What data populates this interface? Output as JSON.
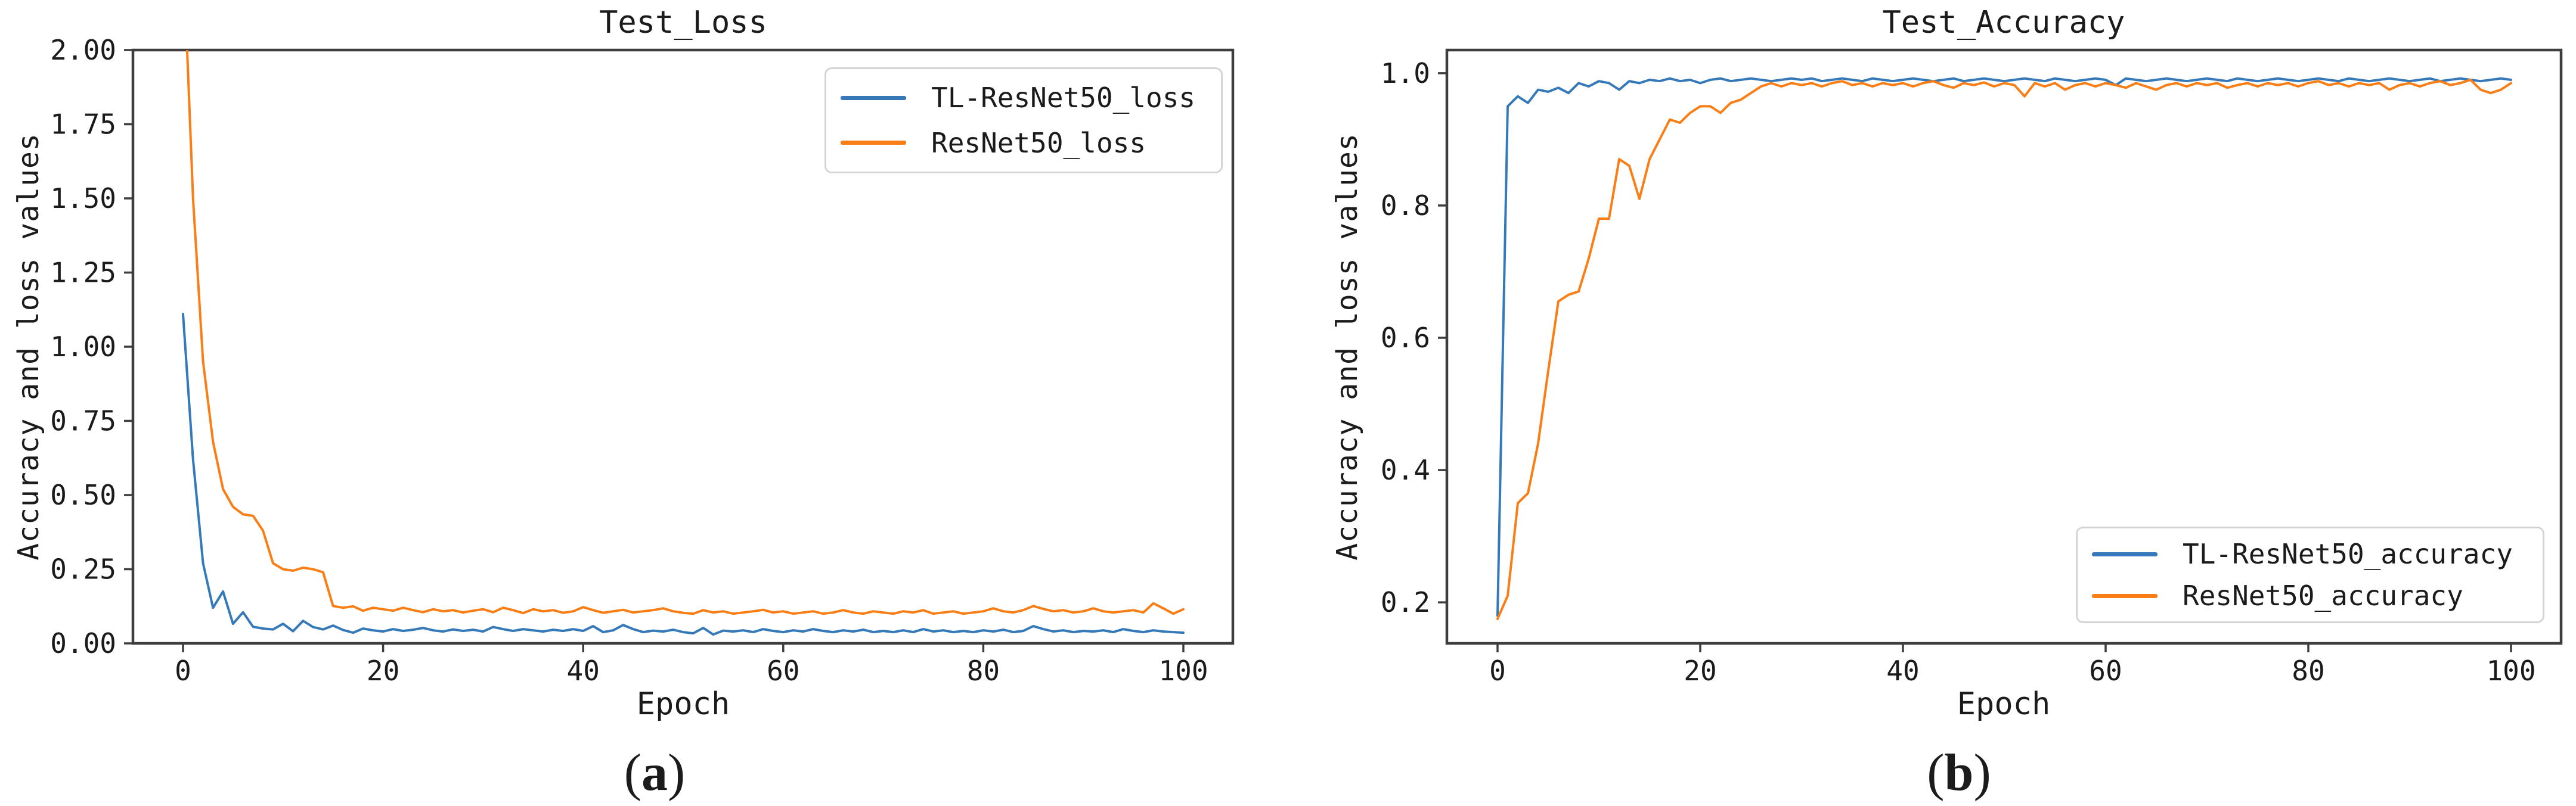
{
  "figure": {
    "background": "#ffffff",
    "spine_color": "#3d3d3d",
    "text_color": "#1b1b1b"
  },
  "chart_data": [
    {
      "type": "line",
      "title": "Test_Loss",
      "xlabel": "Epoch",
      "ylabel": "Accuracy and loss values",
      "caption": {
        "open": "(",
        "letter": "a",
        "close": ")"
      },
      "xlim": [
        -5,
        105
      ],
      "ylim": [
        0,
        2
      ],
      "grid": false,
      "legend_position": "upper-right",
      "xticks": [
        0,
        20,
        40,
        60,
        80,
        100
      ],
      "ytick_values": [
        0,
        0.25,
        0.5,
        0.75,
        1.0,
        1.25,
        1.5,
        1.75,
        2.0
      ],
      "ytick_labels": [
        "0.00",
        "0.25",
        "0.50",
        "0.75",
        "1.00",
        "1.25",
        "1.50",
        "1.75",
        "2.00"
      ],
      "x_start": 0,
      "x_step": 1,
      "series": [
        {
          "name": "TL-ResNet50_loss",
          "color": "#3579b8",
          "values": [
            1.11,
            0.62,
            0.27,
            0.12,
            0.175,
            0.066,
            0.105,
            0.056,
            0.05,
            0.047,
            0.066,
            0.041,
            0.076,
            0.055,
            0.047,
            0.06,
            0.045,
            0.036,
            0.05,
            0.044,
            0.04,
            0.048,
            0.042,
            0.046,
            0.052,
            0.044,
            0.04,
            0.047,
            0.042,
            0.046,
            0.04,
            0.055,
            0.048,
            0.042,
            0.048,
            0.044,
            0.04,
            0.046,
            0.042,
            0.048,
            0.042,
            0.058,
            0.038,
            0.044,
            0.062,
            0.048,
            0.038,
            0.043,
            0.04,
            0.046,
            0.038,
            0.034,
            0.052,
            0.03,
            0.043,
            0.04,
            0.044,
            0.038,
            0.048,
            0.042,
            0.038,
            0.044,
            0.04,
            0.048,
            0.042,
            0.038,
            0.044,
            0.04,
            0.046,
            0.038,
            0.042,
            0.038,
            0.044,
            0.038,
            0.048,
            0.04,
            0.044,
            0.038,
            0.042,
            0.038,
            0.044,
            0.04,
            0.046,
            0.038,
            0.042,
            0.058,
            0.048,
            0.04,
            0.044,
            0.038,
            0.042,
            0.04,
            0.044,
            0.038,
            0.048,
            0.042,
            0.038,
            0.044,
            0.04,
            0.038,
            0.036
          ]
        },
        {
          "name": "ResNet50_loss",
          "color": "#fa7e16",
          "values": [
            2.35,
            1.5,
            0.95,
            0.68,
            0.52,
            0.46,
            0.435,
            0.43,
            0.38,
            0.27,
            0.25,
            0.245,
            0.255,
            0.25,
            0.24,
            0.126,
            0.12,
            0.125,
            0.11,
            0.12,
            0.115,
            0.11,
            0.12,
            0.112,
            0.105,
            0.115,
            0.108,
            0.112,
            0.104,
            0.11,
            0.115,
            0.105,
            0.12,
            0.112,
            0.102,
            0.115,
            0.108,
            0.112,
            0.103,
            0.108,
            0.122,
            0.112,
            0.103,
            0.108,
            0.113,
            0.104,
            0.108,
            0.112,
            0.118,
            0.108,
            0.103,
            0.1,
            0.112,
            0.104,
            0.108,
            0.1,
            0.104,
            0.108,
            0.113,
            0.104,
            0.108,
            0.1,
            0.104,
            0.108,
            0.1,
            0.104,
            0.112,
            0.104,
            0.1,
            0.108,
            0.104,
            0.1,
            0.108,
            0.104,
            0.112,
            0.1,
            0.104,
            0.108,
            0.1,
            0.104,
            0.108,
            0.118,
            0.108,
            0.104,
            0.112,
            0.126,
            0.116,
            0.108,
            0.112,
            0.104,
            0.108,
            0.118,
            0.108,
            0.104,
            0.108,
            0.112,
            0.104,
            0.135,
            0.118,
            0.1,
            0.115
          ]
        }
      ]
    },
    {
      "type": "line",
      "title": "Test_Accuracy",
      "xlabel": "Epoch",
      "ylabel": "Accuracy and loss values",
      "caption": {
        "open": "(",
        "letter": "b",
        "close": ")"
      },
      "xlim": [
        -5,
        105
      ],
      "ylim": [
        0.138,
        1.035
      ],
      "grid": false,
      "legend_position": "lower-right",
      "xticks": [
        0,
        20,
        40,
        60,
        80,
        100
      ],
      "ytick_values": [
        0.2,
        0.4,
        0.6,
        0.8,
        1.0
      ],
      "ytick_labels": [
        "0.2",
        "0.4",
        "0.6",
        "0.8",
        "1.0"
      ],
      "x_start": 0,
      "x_step": 1,
      "series": [
        {
          "name": "TL-ResNet50_accuracy",
          "color": "#3579b8",
          "values": [
            0.18,
            0.95,
            0.965,
            0.955,
            0.975,
            0.972,
            0.978,
            0.97,
            0.985,
            0.98,
            0.988,
            0.985,
            0.975,
            0.988,
            0.985,
            0.99,
            0.988,
            0.992,
            0.988,
            0.99,
            0.985,
            0.99,
            0.992,
            0.988,
            0.99,
            0.992,
            0.99,
            0.988,
            0.99,
            0.992,
            0.99,
            0.992,
            0.988,
            0.99,
            0.992,
            0.99,
            0.988,
            0.992,
            0.99,
            0.988,
            0.99,
            0.992,
            0.99,
            0.988,
            0.99,
            0.992,
            0.988,
            0.99,
            0.992,
            0.99,
            0.988,
            0.99,
            0.992,
            0.99,
            0.988,
            0.992,
            0.99,
            0.988,
            0.99,
            0.992,
            0.99,
            0.982,
            0.992,
            0.99,
            0.988,
            0.99,
            0.992,
            0.99,
            0.988,
            0.99,
            0.992,
            0.99,
            0.988,
            0.992,
            0.99,
            0.988,
            0.99,
            0.992,
            0.99,
            0.988,
            0.99,
            0.992,
            0.99,
            0.988,
            0.992,
            0.99,
            0.988,
            0.99,
            0.992,
            0.99,
            0.988,
            0.99,
            0.992,
            0.988,
            0.99,
            0.992,
            0.99,
            0.988,
            0.99,
            0.992,
            0.99
          ]
        },
        {
          "name": "ResNet50_accuracy",
          "color": "#fa7e16",
          "values": [
            0.175,
            0.21,
            0.35,
            0.365,
            0.44,
            0.55,
            0.655,
            0.665,
            0.67,
            0.72,
            0.78,
            0.78,
            0.87,
            0.86,
            0.81,
            0.87,
            0.9,
            0.93,
            0.925,
            0.94,
            0.95,
            0.95,
            0.94,
            0.955,
            0.96,
            0.97,
            0.98,
            0.985,
            0.98,
            0.985,
            0.982,
            0.985,
            0.98,
            0.985,
            0.988,
            0.982,
            0.985,
            0.98,
            0.985,
            0.982,
            0.985,
            0.98,
            0.985,
            0.988,
            0.982,
            0.978,
            0.985,
            0.982,
            0.986,
            0.98,
            0.985,
            0.982,
            0.965,
            0.985,
            0.98,
            0.985,
            0.975,
            0.982,
            0.985,
            0.98,
            0.985,
            0.982,
            0.978,
            0.985,
            0.98,
            0.975,
            0.982,
            0.985,
            0.98,
            0.985,
            0.982,
            0.985,
            0.978,
            0.982,
            0.985,
            0.98,
            0.985,
            0.982,
            0.985,
            0.98,
            0.985,
            0.988,
            0.982,
            0.985,
            0.98,
            0.985,
            0.982,
            0.985,
            0.975,
            0.982,
            0.985,
            0.98,
            0.985,
            0.988,
            0.982,
            0.985,
            0.99,
            0.975,
            0.97,
            0.975,
            0.985
          ]
        }
      ]
    }
  ]
}
